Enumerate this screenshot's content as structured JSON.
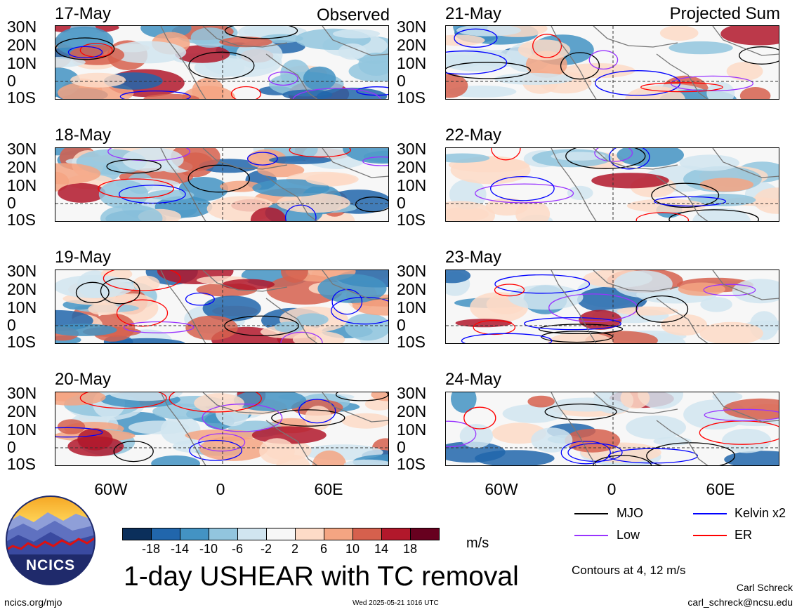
{
  "panels_left": [
    {
      "date": "17-May",
      "tag": "Observed"
    },
    {
      "date": "18-May",
      "tag": ""
    },
    {
      "date": "19-May",
      "tag": ""
    },
    {
      "date": "20-May",
      "tag": ""
    }
  ],
  "panels_right": [
    {
      "date": "21-May",
      "tag": "Projected Sum"
    },
    {
      "date": "22-May",
      "tag": ""
    },
    {
      "date": "23-May",
      "tag": ""
    },
    {
      "date": "24-May",
      "tag": ""
    }
  ],
  "lat_labels": [
    "30N",
    "20N",
    "10N",
    "0",
    "10S"
  ],
  "lon_labels": [
    "60W",
    "0",
    "60E"
  ],
  "colorbar": {
    "ticks": [
      "-18",
      "-14",
      "-10",
      "-6",
      "-2",
      "2",
      "6",
      "10",
      "14",
      "18"
    ],
    "colors": [
      "#0b2f5b",
      "#2166ac",
      "#4393c3",
      "#92c5de",
      "#d1e5f0",
      "#f7f7f7",
      "#fddbc7",
      "#f4a582",
      "#d6604d",
      "#b2182b",
      "#67001f"
    ],
    "units": "m/s"
  },
  "legend": {
    "items": [
      {
        "label": "MJO",
        "color": "#000000"
      },
      {
        "label": "Kelvin x2",
        "color": "#0000ff"
      },
      {
        "label": "Low",
        "color": "#9933ff"
      },
      {
        "label": "ER",
        "color": "#ff0000"
      }
    ],
    "contours_note": "Contours at 4, 12 m/s"
  },
  "title": "1-day USHEAR with TC removal",
  "logo_text": "NCICS",
  "footer_left": "ncics.org/mjo",
  "footer_center": "Wed 2025-05-21 1016 UTC",
  "author_name": "Carl Schreck",
  "author_email": "carl_schreck@ncsu.edu"
}
